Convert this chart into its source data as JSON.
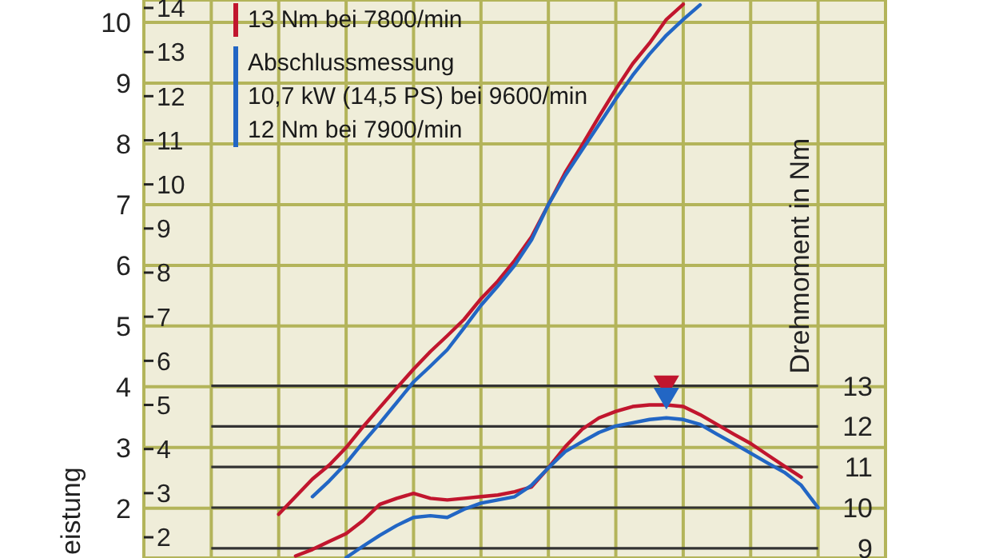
{
  "chart_data": {
    "type": "line",
    "ylabel": "eistung",
    "y2label": "Drehmoment in Nm",
    "categories": [
      null,
      null,
      null,
      null,
      null,
      null,
      null,
      null,
      null,
      null,
      null,
      null,
      null,
      null,
      null,
      null,
      null,
      null,
      null,
      null,
      null,
      null,
      null,
      null,
      null,
      null,
      null,
      null,
      null,
      null,
      null,
      null,
      null,
      null,
      null,
      null,
      null,
      null,
      null,
      null,
      null,
      null,
      null,
      null,
      null
    ],
    "ylim": [
      1.18,
      10.37
    ],
    "yticks": [
      2,
      3,
      4,
      5,
      6,
      7,
      8,
      9,
      10
    ],
    "y3lim": [
      1.53,
      14.18
    ],
    "y3ticks": [
      2,
      3,
      4,
      5,
      6,
      7,
      8,
      9,
      10,
      11,
      12,
      13,
      14
    ],
    "y2lim": [
      8.76,
      22.5
    ],
    "y2ticks": [
      9,
      10,
      11,
      12,
      13
    ],
    "grid": true,
    "legend": "top left",
    "tick_labels": "y",
    "marker": "none",
    "line_style": "solid",
    "annotations": [
      "13 Nm bei 7800/min",
      "10,7 kW (14,5 PS) bei 9600/min",
      "12 Nm bei 7900/min"
    ],
    "series": [
      {
        "color": "#c1162e",
        "values": [
          null,
          null,
          null,
          null,
          null,
          null,
          null,
          null,
          1.9,
          2.19,
          2.48,
          2.71,
          3.0,
          3.34,
          3.66,
          3.98,
          4.29,
          4.58,
          4.84,
          5.11,
          5.45,
          5.74,
          6.08,
          6.47,
          7.0,
          7.53,
          7.98,
          8.45,
          8.9,
          9.32,
          9.66,
          10.05,
          10.3,
          null,
          null,
          null,
          null,
          null,
          null,
          null,
          null,
          null,
          null,
          null,
          null
        ]
      },
      {
        "name": "Abschlussmessung",
        "color": "#2266c4",
        "values": [
          null,
          null,
          null,
          null,
          null,
          null,
          null,
          null,
          null,
          null,
          2.19,
          2.45,
          2.74,
          3.08,
          3.4,
          3.74,
          4.08,
          4.34,
          4.61,
          4.97,
          5.34,
          5.66,
          6.0,
          6.42,
          7.0,
          7.48,
          7.9,
          8.32,
          8.74,
          9.13,
          9.48,
          9.79,
          10.05,
          10.29,
          null,
          null,
          null,
          null,
          null,
          null,
          null,
          null,
          null,
          null,
          null
        ]
      },
      {
        "axis": "y2",
        "color": "#c1162e",
        "values": [
          null,
          null,
          null,
          null,
          null,
          null,
          null,
          null,
          null,
          8.81,
          8.97,
          9.17,
          9.36,
          9.68,
          10.08,
          10.23,
          10.35,
          10.23,
          10.19,
          10.23,
          10.27,
          10.31,
          10.39,
          10.51,
          10.98,
          11.5,
          11.93,
          12.21,
          12.37,
          12.49,
          12.53,
          12.53,
          12.49,
          12.29,
          12.05,
          11.81,
          11.58,
          11.3,
          11.02,
          10.75,
          null,
          null,
          null,
          null,
          null
        ]
      },
      {
        "axis": "y2",
        "color": "#2266c4",
        "values": [
          null,
          null,
          null,
          null,
          null,
          null,
          null,
          null,
          null,
          null,
          null,
          null,
          8.77,
          9.05,
          9.32,
          9.56,
          9.76,
          9.8,
          9.76,
          9.96,
          10.11,
          10.19,
          10.27,
          10.55,
          10.98,
          11.38,
          11.62,
          11.85,
          12.01,
          12.09,
          12.17,
          12.21,
          12.17,
          12.05,
          11.81,
          11.58,
          11.34,
          11.1,
          10.87,
          10.55,
          10.0,
          null,
          null,
          null,
          null
        ]
      },
      {
        "type": "scatter",
        "axis": "y2",
        "marker": "triangle",
        "color": "#c1162e",
        "values": [
          null,
          null,
          null,
          null,
          null,
          null,
          null,
          null,
          null,
          null,
          null,
          null,
          null,
          null,
          null,
          null,
          null,
          null,
          null,
          null,
          null,
          null,
          null,
          null,
          null,
          null,
          null,
          null,
          null,
          null,
          null,
          13.0,
          null,
          null,
          null,
          null,
          null,
          null,
          null,
          null,
          null,
          null,
          null,
          null,
          null
        ]
      },
      {
        "type": "scatter",
        "axis": "y2",
        "marker": "triangle",
        "color": "#2266c4",
        "values": [
          null,
          null,
          null,
          null,
          null,
          null,
          null,
          null,
          null,
          null,
          null,
          null,
          null,
          null,
          null,
          null,
          null,
          null,
          null,
          null,
          null,
          null,
          null,
          null,
          null,
          null,
          null,
          null,
          null,
          null,
          null,
          12.7,
          null,
          null,
          null,
          null,
          null,
          null,
          null,
          null,
          null,
          null,
          null,
          null,
          null
        ]
      }
    ]
  }
}
